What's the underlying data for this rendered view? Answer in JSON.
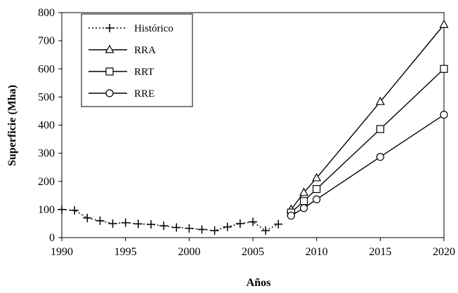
{
  "chart_data": {
    "type": "line",
    "title": "",
    "xlabel": "Años",
    "ylabel": "Superficie (Mha)",
    "xlim": [
      1990,
      2020
    ],
    "ylim": [
      0,
      800
    ],
    "xticks": [
      1990,
      1995,
      2000,
      2005,
      2010,
      2015,
      2020
    ],
    "yticks": [
      0,
      100,
      200,
      300,
      400,
      500,
      600,
      700,
      800
    ],
    "grid": false,
    "legend_position": "top-left",
    "series": [
      {
        "name": "Histórico",
        "marker": "plus",
        "line": "dotted",
        "color": "#000000",
        "x": [
          1990,
          1991,
          1992,
          1993,
          1994,
          1995,
          1996,
          1997,
          1998,
          1999,
          2000,
          2001,
          2002,
          2003,
          2004,
          2005,
          2006,
          2007
        ],
        "y": [
          100,
          97,
          70,
          60,
          50,
          53,
          49,
          47,
          42,
          36,
          33,
          29,
          25,
          38,
          50,
          56,
          25,
          48
        ]
      },
      {
        "name": "RRA",
        "marker": "triangle",
        "line": "solid",
        "color": "#000000",
        "x": [
          2008,
          2009,
          2010,
          2015,
          2020
        ],
        "y": [
          100,
          160,
          212,
          483,
          757
        ]
      },
      {
        "name": "RRT",
        "marker": "square",
        "line": "solid",
        "color": "#000000",
        "x": [
          2008,
          2009,
          2010,
          2015,
          2020
        ],
        "y": [
          89,
          130,
          173,
          386,
          600
        ]
      },
      {
        "name": "RRE",
        "marker": "circle",
        "line": "solid",
        "color": "#000000",
        "x": [
          2008,
          2009,
          2010,
          2015,
          2020
        ],
        "y": [
          78,
          105,
          136,
          287,
          437
        ]
      }
    ]
  }
}
